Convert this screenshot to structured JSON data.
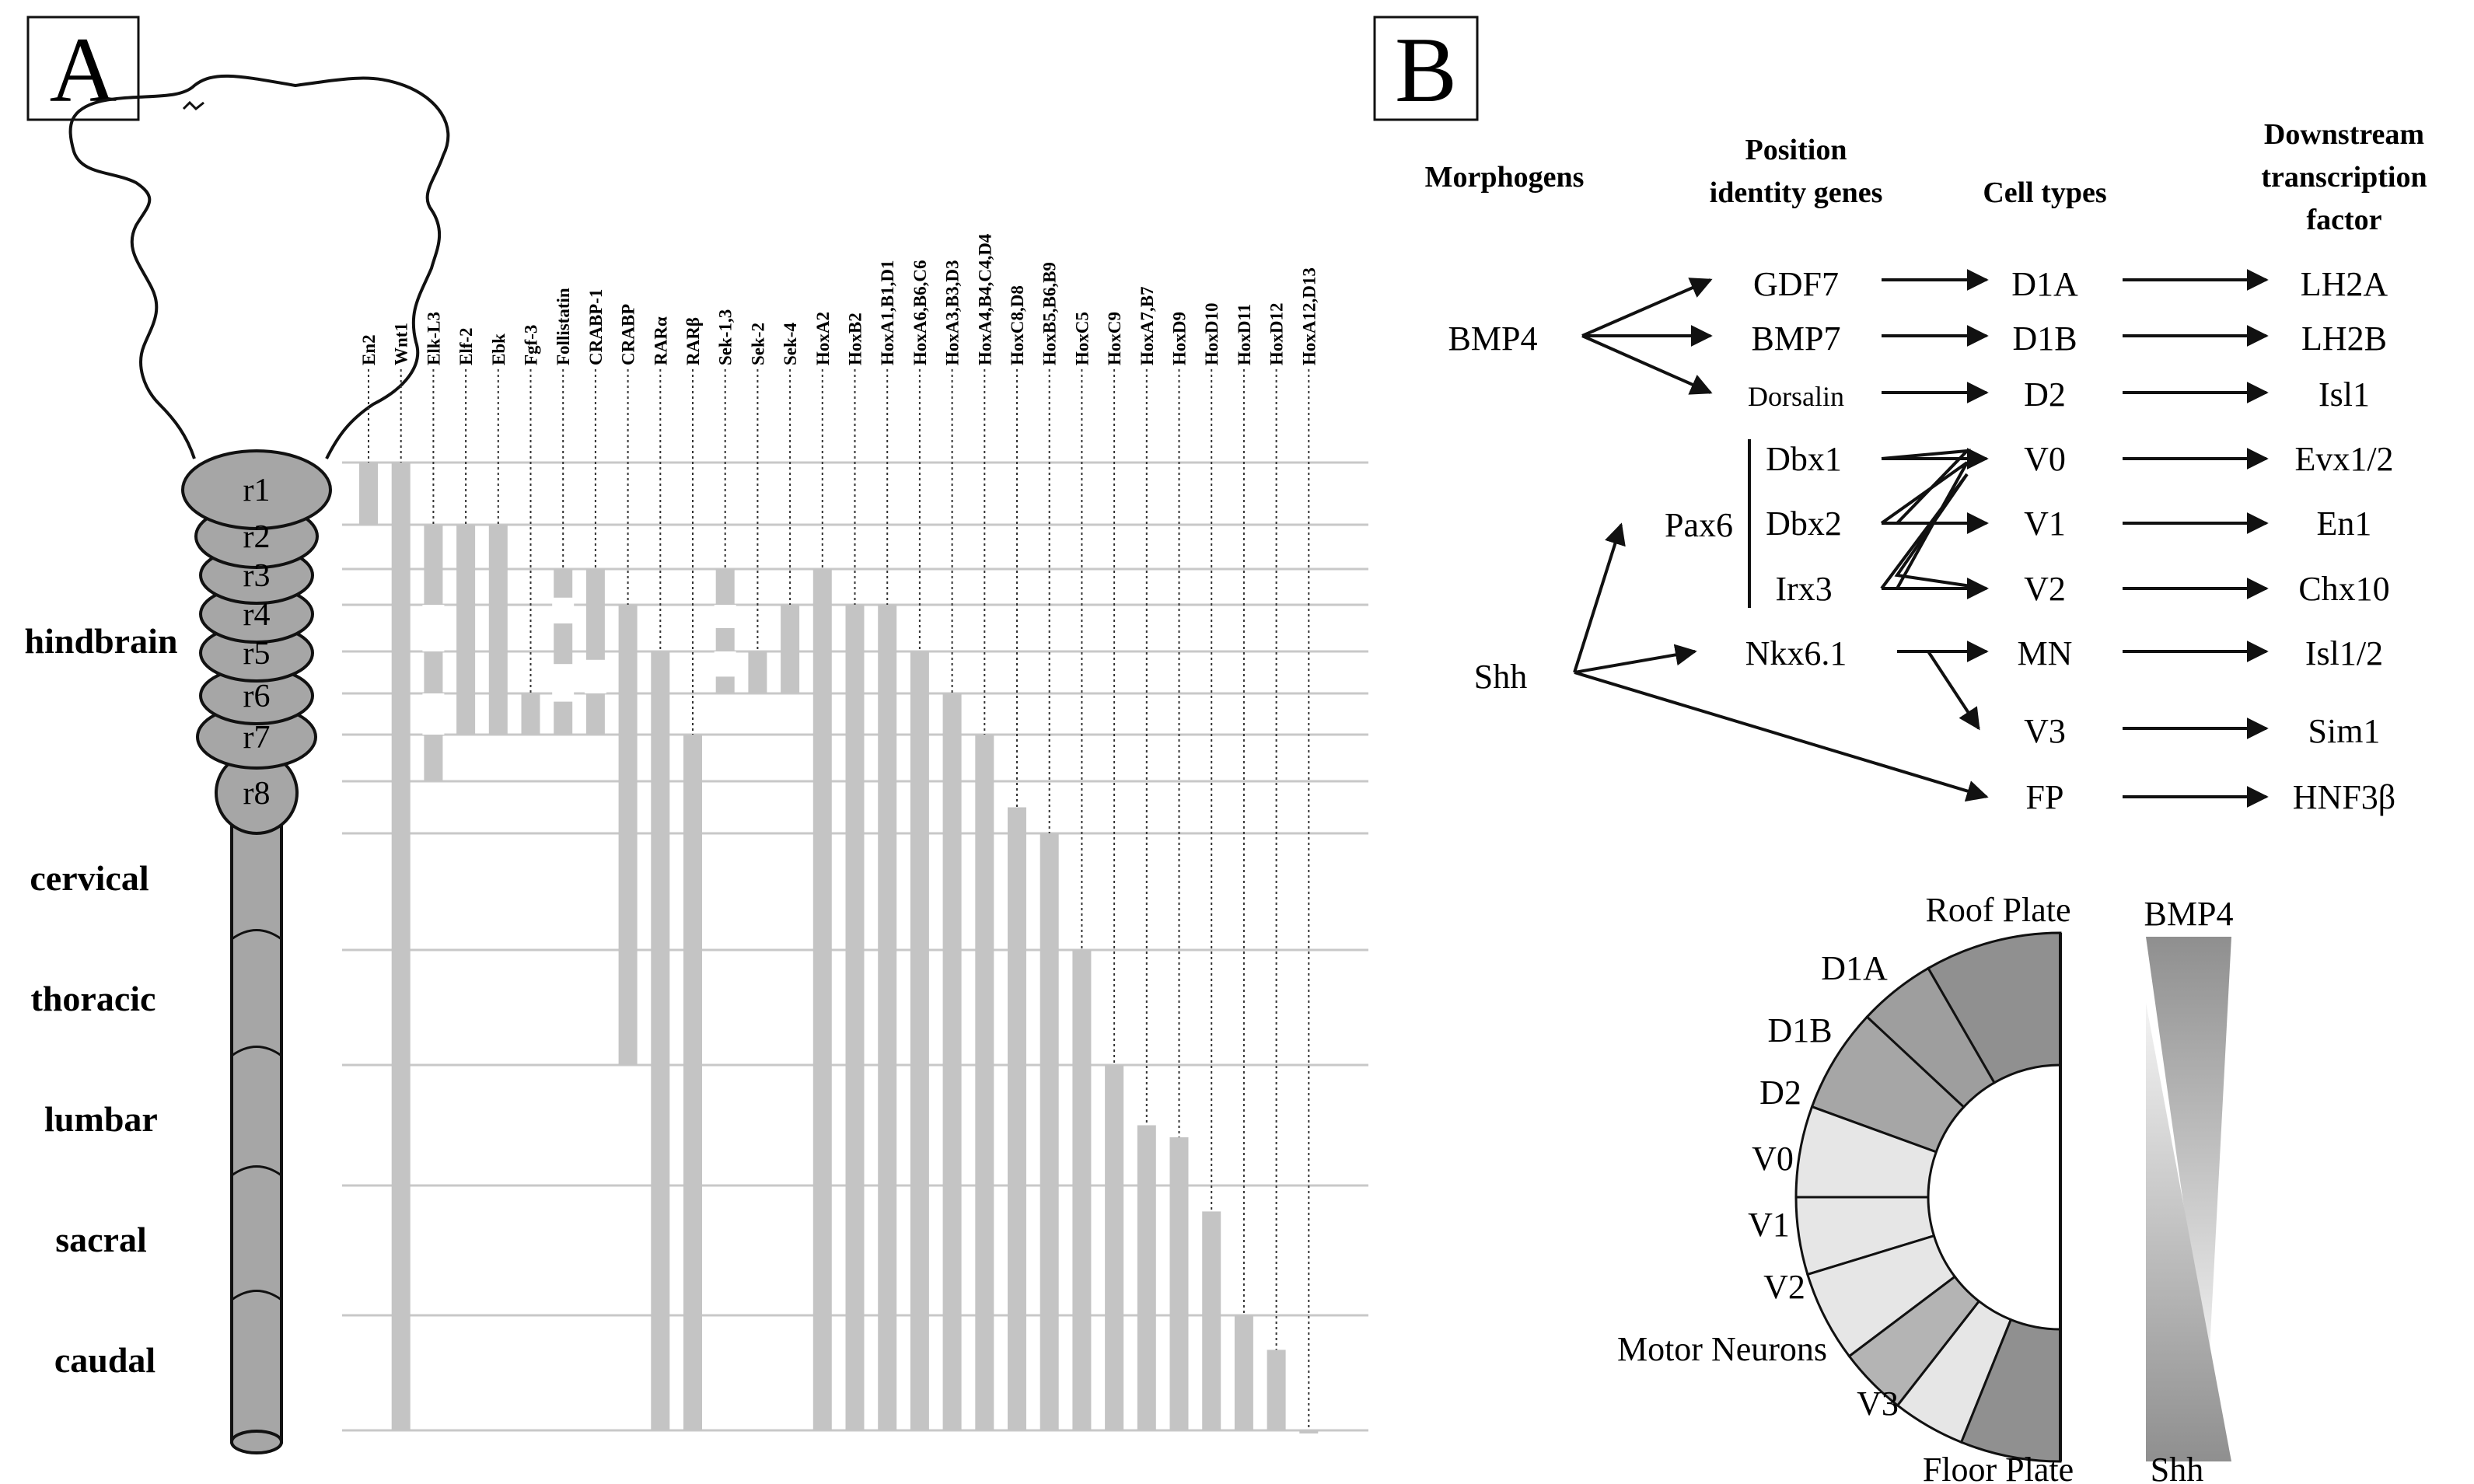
{
  "panel_a": {
    "letter": "A",
    "rhombomeres": [
      "r1",
      "r2",
      "r3",
      "r4",
      "r5",
      "r6",
      "r7",
      "r8"
    ],
    "regions": [
      "hindbrain",
      "cervical",
      "thoracic",
      "lumbar",
      "sacral",
      "caudal"
    ],
    "genes": [
      {
        "name": "En2",
        "range": [
          0,
          1
        ]
      },
      {
        "name": "Wnt1",
        "range": [
          0,
          13
        ]
      },
      {
        "name": "Elk-L3",
        "range": [
          1,
          7
        ]
      },
      {
        "name": "Elf-2",
        "range": [
          1,
          6
        ]
      },
      {
        "name": "Ebk",
        "range": [
          1,
          6
        ]
      },
      {
        "name": "Fgf-3",
        "range": [
          5,
          6
        ]
      },
      {
        "name": "Follistatin",
        "range": [
          2,
          6
        ]
      },
      {
        "name": "CRABP-1",
        "range": [
          2,
          6
        ]
      },
      {
        "name": "CRABP",
        "range": [
          3,
          10
        ]
      },
      {
        "name": "RARα",
        "range": [
          4,
          14
        ]
      },
      {
        "name": "RARβ",
        "range": [
          6,
          14
        ]
      },
      {
        "name": "Sek-1,3",
        "range": [
          2,
          5
        ]
      },
      {
        "name": "Sek-2",
        "range": [
          4,
          5
        ]
      },
      {
        "name": "Sek-4",
        "range": [
          3,
          5
        ]
      },
      {
        "name": "HoxA2",
        "range": [
          2,
          14
        ]
      },
      {
        "name": "HoxB2",
        "range": [
          3,
          14
        ]
      },
      {
        "name": "HoxA1,B1,D1",
        "range": [
          3,
          14
        ]
      },
      {
        "name": "HoxA6,B6,C6",
        "range": [
          4,
          14
        ]
      },
      {
        "name": "HoxA3,B3,D3",
        "range": [
          5,
          14
        ]
      },
      {
        "name": "HoxA4,B4,C4,D4",
        "range": [
          6,
          14
        ]
      },
      {
        "name": "HoxC8,D8",
        "range": [
          7.5,
          14
        ]
      },
      {
        "name": "HoxB5,B6,B9",
        "range": [
          8,
          14
        ]
      },
      {
        "name": "HoxC5",
        "range": [
          9,
          14
        ]
      },
      {
        "name": "HoxC9",
        "range": [
          10,
          14
        ]
      },
      {
        "name": "HoxA7,B7",
        "range": [
          10.5,
          14
        ]
      },
      {
        "name": "HoxD9",
        "range": [
          10.6,
          14
        ]
      },
      {
        "name": "HoxD10",
        "range": [
          11.2,
          14
        ]
      },
      {
        "name": "HoxD11",
        "range": [
          12,
          14
        ]
      },
      {
        "name": "HoxD12",
        "range": [
          12.3,
          14
        ]
      },
      {
        "name": "HoxA12,D13",
        "range": [
          13.3,
          14
        ]
      }
    ]
  },
  "panel_b": {
    "letter": "B",
    "headers": {
      "morphogens": "Morphogens",
      "position_line1": "Position",
      "position_line2": "identity genes",
      "cell_types": "Cell types",
      "downstream_line1": "Downstream",
      "downstream_line2": "transcription",
      "downstream_line3": "factor"
    },
    "morphogens": [
      "BMP4",
      "Shh",
      "Pax6"
    ],
    "position_genes": [
      "GDF7",
      "BMP7",
      "Dorsalin",
      "Dbx1",
      "Dbx2",
      "Irx3",
      "Nkx6.1"
    ],
    "cell_types": [
      "D1A",
      "D1B",
      "D2",
      "V0",
      "V1",
      "V2",
      "MN",
      "V3",
      "FP"
    ],
    "transcription_factors": [
      "LH2A",
      "LH2B",
      "Isl1",
      "Evx1/2",
      "En1",
      "Chx10",
      "Isl1/2",
      "Sim1",
      "HNF3β"
    ],
    "section_labels": [
      "Roof Plate",
      "D1A",
      "D1B",
      "D2",
      "V0",
      "V1",
      "V2",
      "Motor Neurons",
      "V3",
      "Floor Plate"
    ],
    "gradient_labels": {
      "top": "BMP4",
      "bottom": "Shh"
    }
  }
}
